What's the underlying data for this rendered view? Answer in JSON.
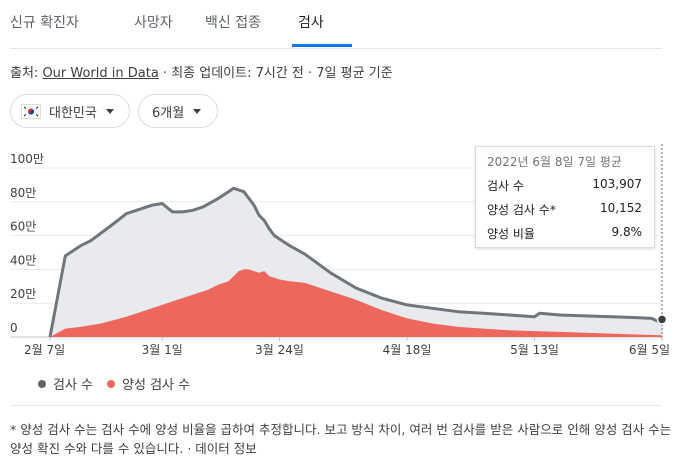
{
  "tabs": [
    "신규 확진자",
    "사망자",
    "백신 접종",
    "검사"
  ],
  "source": {
    "prefix": "출처: ",
    "link": "Our World in Data",
    "suffix": " · 최종 업데이트: 7시간 전 · 7일 평균 기준"
  },
  "filters": {
    "country": "대한민국",
    "country_flag": "korea-flag-icon",
    "period": "6개월"
  },
  "tooltip": {
    "date": "2022년 6월 8일 7일 평균",
    "rows": [
      {
        "label": "검사 수",
        "value": "103,907"
      },
      {
        "label": "양성 검사 수*",
        "value": "10,152"
      },
      {
        "label": "양성 비율",
        "value": "9.8%"
      }
    ]
  },
  "legend": [
    {
      "label": "검사 수",
      "color": "#5f6368"
    },
    {
      "label": "양성 검사 수",
      "color": "#ee675c"
    }
  ],
  "footnote": {
    "text": "* 양성 검사 수는 검사 수에 양성 비율을 곱하여 추정합니다. 보고 방식 차이, 여러 번 검사를 받은 사람으로 인해 양성 검사 수는 양성 확진 수와 다를 수 있습니다. · ",
    "info": "데이터 정보"
  },
  "colors": {
    "tests_line": "#70757a",
    "tests_fill": "#e8eaed",
    "positive_fill": "#ee675c",
    "accent": "#1a73e8"
  },
  "chart_data": {
    "type": "area",
    "title": "",
    "xlabel": "",
    "ylabel": "",
    "ylim": [
      0,
      1000000
    ],
    "yticks": [
      0,
      200000,
      400000,
      600000,
      800000,
      1000000
    ],
    "ytick_labels": [
      "0",
      "20만",
      "40만",
      "60만",
      "80만",
      "100만"
    ],
    "x_days_range": [
      0,
      120
    ],
    "xticks": [
      0,
      22,
      45,
      70,
      95,
      120
    ],
    "xtick_labels": [
      "2월 7일",
      "3월 1일",
      "3월 24일",
      "4월 18일",
      "5월 13일",
      "6월 5일"
    ],
    "series": [
      {
        "name": "검사 수",
        "x": [
          0,
          3,
          6,
          8,
          12,
          15,
          18,
          20,
          22,
          24,
          26,
          27,
          28,
          30,
          33,
          35,
          36,
          37,
          38,
          39,
          40,
          41,
          42,
          43,
          44,
          45,
          47,
          50,
          55,
          60,
          65,
          70,
          75,
          80,
          85,
          90,
          95,
          96,
          100,
          105,
          110,
          115,
          118,
          119,
          120
        ],
        "values": [
          0,
          480000,
          540000,
          570000,
          660000,
          730000,
          760000,
          780000,
          790000,
          740000,
          740000,
          745000,
          750000,
          770000,
          820000,
          860000,
          880000,
          870000,
          860000,
          820000,
          780000,
          720000,
          690000,
          640000,
          600000,
          580000,
          540000,
          490000,
          380000,
          290000,
          230000,
          190000,
          170000,
          150000,
          140000,
          130000,
          120000,
          140000,
          130000,
          125000,
          120000,
          115000,
          110000,
          95000,
          104000
        ]
      },
      {
        "name": "양성 검사 수",
        "x": [
          0,
          3,
          6,
          10,
          15,
          20,
          25,
          28,
          31,
          33,
          35,
          36,
          37,
          38,
          39,
          40,
          41,
          42,
          43,
          44,
          45,
          47,
          50,
          52,
          55,
          60,
          65,
          70,
          75,
          80,
          85,
          90,
          95,
          100,
          105,
          110,
          115,
          120
        ],
        "values": [
          0,
          50000,
          60000,
          80000,
          120000,
          170000,
          220000,
          250000,
          280000,
          310000,
          330000,
          360000,
          390000,
          400000,
          400000,
          390000,
          380000,
          390000,
          360000,
          350000,
          340000,
          330000,
          320000,
          300000,
          270000,
          220000,
          160000,
          110000,
          80000,
          60000,
          50000,
          40000,
          35000,
          30000,
          25000,
          20000,
          15000,
          10000
        ]
      }
    ],
    "legend_position": "bottom-left",
    "highlight": {
      "x": 120,
      "value": 104000
    }
  }
}
